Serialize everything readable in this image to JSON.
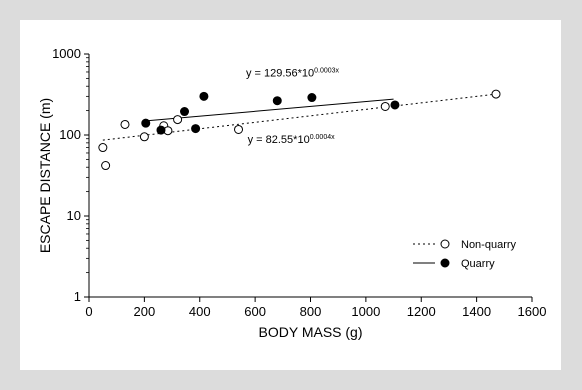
{
  "chart_data": {
    "type": "scatter",
    "title": "",
    "xlabel": "BODY MASS (g)",
    "ylabel": "ESCAPE DISTANCE (m)",
    "xlim": [
      0,
      1600
    ],
    "ylim": [
      1,
      1000
    ],
    "yscale": "log",
    "xticks": [
      "0",
      "200",
      "400",
      "600",
      "800",
      "1000",
      "1200",
      "1400",
      "1600"
    ],
    "yticks": [
      "1",
      "10",
      "100",
      "1000"
    ],
    "grid": false,
    "legend_position": "lower-right",
    "series": [
      {
        "name": "Non-quarry",
        "marker": "open-circle",
        "line_style": "dotted",
        "fit_equation": "y = 82.55*10",
        "fit_exponent": "0.0004x",
        "fit_intercept": 82.55,
        "fit_slope": 0.0004,
        "fit_range": [
          50,
          1470
        ],
        "x": [
          50,
          60,
          130,
          200,
          270,
          285,
          320,
          540,
          1070,
          1470
        ],
        "y": [
          70,
          42,
          135,
          95,
          130,
          113,
          155,
          117,
          225,
          320
        ]
      },
      {
        "name": "Quarry",
        "marker": "filled-circle",
        "line_style": "solid",
        "fit_equation": "y = 129.56*10",
        "fit_exponent": "0.0003x",
        "fit_intercept": 129.56,
        "fit_slope": 0.0003,
        "fit_range": [
          200,
          1100
        ],
        "x": [
          205,
          260,
          345,
          385,
          415,
          680,
          805,
          1105
        ],
        "y": [
          140,
          115,
          195,
          120,
          300,
          265,
          290,
          235
        ]
      }
    ]
  }
}
